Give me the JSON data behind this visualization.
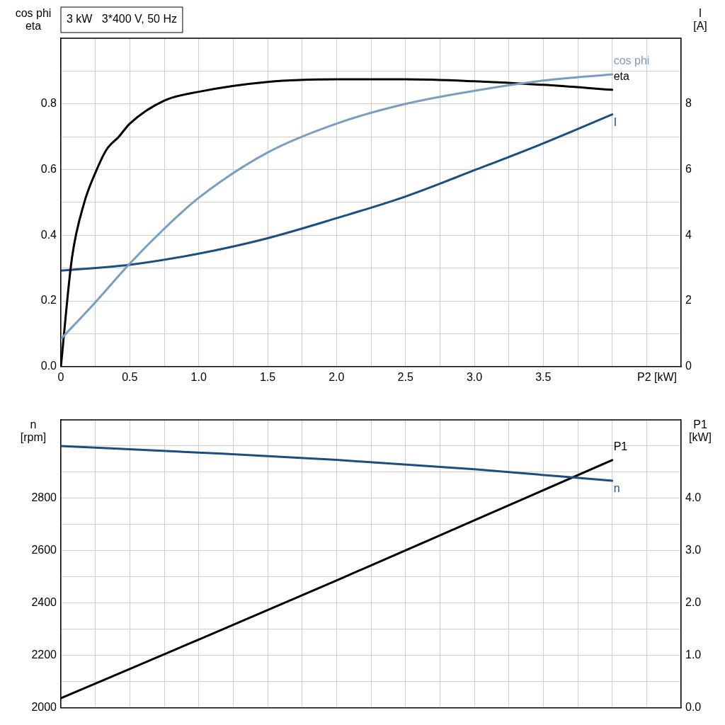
{
  "chart_data": [
    {
      "type": "line",
      "title": "3 kW   3*400 V, 50 Hz",
      "xlabel": "P2 [kW]",
      "ylabel": "cos phi\neta",
      "y2label": "I\n[A]",
      "legend": false,
      "grid": true,
      "marker": "none",
      "line_style": "solid",
      "xlim": [
        0,
        4.5
      ],
      "xticks": [
        0,
        {
          "value": 0.25,
          "label": null
        },
        0.5,
        {
          "value": 0.75,
          "label": null
        },
        {
          "value": 1,
          "label": "1.0"
        },
        {
          "value": 1.25,
          "label": null
        },
        1.5,
        {
          "value": 1.75,
          "label": null
        },
        {
          "value": 2,
          "label": "2.0"
        },
        {
          "value": 2.25,
          "label": null
        },
        2.5,
        {
          "value": 2.75,
          "label": null
        },
        {
          "value": 3,
          "label": "3.0"
        },
        {
          "value": 3.25,
          "label": null
        },
        3.5,
        {
          "value": 3.75,
          "label": null
        },
        {
          "value": 4,
          "label": null
        },
        {
          "value": 4.25,
          "label": null
        },
        {
          "value": 4.5,
          "label": null
        }
      ],
      "ylim": [
        0,
        1
      ],
      "yticks": [
        {
          "value": 0,
          "label": "0.0"
        },
        {
          "value": 0.1,
          "label": null
        },
        0.2,
        {
          "value": 0.3,
          "label": null
        },
        0.4,
        {
          "value": 0.5,
          "label": null
        },
        0.6,
        {
          "value": 0.7,
          "label": null
        },
        0.8,
        {
          "value": 0.9,
          "label": null
        },
        {
          "value": 1,
          "label": null
        }
      ],
      "y2lim": [
        0,
        10
      ],
      "y2ticks": [
        0,
        2,
        4,
        6,
        8
      ],
      "series": [
        {
          "name": "cos phi",
          "color": "#7a9ec0",
          "x": [
            0,
            0.25,
            0.5,
            0.75,
            1,
            1.5,
            2,
            2.5,
            3,
            3.5,
            4
          ],
          "values": [
            0.084,
            0.196,
            0.314,
            0.42,
            0.514,
            0.652,
            0.74,
            0.8,
            0.84,
            0.871,
            0.89
          ]
        },
        {
          "name": "eta",
          "color": "#000000",
          "x": [
            0,
            0.08,
            0.17,
            0.25,
            0.33,
            0.42,
            0.5,
            0.75,
            1,
            1.5,
            2,
            2.5,
            3,
            3.5,
            4
          ],
          "values": [
            0,
            0.33,
            0.5,
            0.59,
            0.66,
            0.7,
            0.74,
            0.81,
            0.837,
            0.867,
            0.875,
            0.875,
            0.869,
            0.858,
            0.843
          ]
        },
        {
          "name": "I",
          "color": "#1a4f80",
          "axis": "y2",
          "x": [
            0,
            0.5,
            1,
            1.5,
            2,
            2.5,
            3,
            3.5,
            4
          ],
          "values": [
            2.92,
            3.1,
            3.44,
            3.91,
            4.52,
            5.18,
            5.98,
            6.8,
            7.68
          ]
        }
      ]
    },
    {
      "type": "line",
      "ylabel": "n\n[rpm]",
      "y2label": "P1\n[kW]",
      "legend": false,
      "grid": true,
      "marker": "none",
      "line_style": "solid",
      "tick_labels": "y",
      "xlim": [
        0,
        4.5
      ],
      "xticks": [
        0,
        0.25,
        0.5,
        0.75,
        1,
        1.25,
        1.5,
        1.75,
        2,
        2.25,
        2.5,
        2.75,
        3,
        3.25,
        3.5,
        3.75,
        4,
        4.25,
        4.5
      ],
      "ylim": [
        2000,
        3100
      ],
      "yticks": [
        2000,
        {
          "value": 2100,
          "label": null
        },
        2200,
        {
          "value": 2300,
          "label": null
        },
        2400,
        {
          "value": 2500,
          "label": null
        },
        2600,
        {
          "value": 2700,
          "label": null
        },
        2800,
        {
          "value": 2900,
          "label": null
        },
        {
          "value": 3000,
          "label": null
        },
        {
          "value": 3100,
          "label": null
        }
      ],
      "y2lim": [
        0,
        5.5
      ],
      "y2ticks": [
        {
          "value": 0,
          "label": "0.0"
        },
        {
          "value": 1,
          "label": "1.0"
        },
        {
          "value": 2,
          "label": "2.0"
        },
        {
          "value": 3,
          "label": "3.0"
        },
        {
          "value": 4,
          "label": "4.0"
        }
      ],
      "series": [
        {
          "name": "n",
          "color": "#1a4f80",
          "x": [
            0,
            1,
            2,
            3,
            4
          ],
          "values": [
            3000,
            2975,
            2947,
            2911,
            2867
          ]
        },
        {
          "name": "P1",
          "color": "#000000",
          "axis": "y2",
          "x": [
            0,
            1,
            2,
            3,
            4
          ],
          "values": [
            0.18,
            1.3,
            2.43,
            3.58,
            4.73
          ]
        }
      ]
    }
  ]
}
